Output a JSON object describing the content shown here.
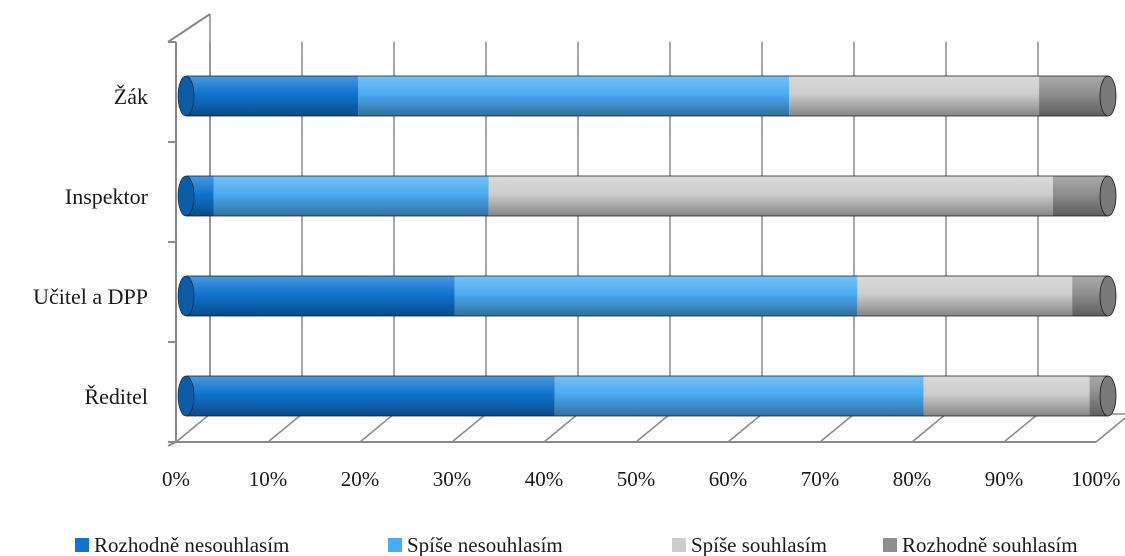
{
  "chart_data": {
    "type": "bar",
    "orientation": "horizontal",
    "stacked": "percent",
    "three_d": true,
    "categories": [
      "Žák",
      "Inspektor",
      "Učitel a DPP",
      "Ředitel"
    ],
    "series": [
      {
        "name": "Rozhodně nesouhlasím",
        "color": "#0f74d0",
        "values": [
          20,
          4,
          30,
          40
        ]
      },
      {
        "name": "Spíše nesouhlasím",
        "color": "#4aabf2",
        "values": [
          50,
          40,
          45,
          40
        ]
      },
      {
        "name": "Spíše souhlasím",
        "color": "#cdcdcd",
        "values": [
          29,
          82,
          24,
          18
        ]
      },
      {
        "name": "Rozhodně souhlasím",
        "color": "#8e8e8e",
        "values": [
          8,
          8,
          4,
          2
        ]
      }
    ],
    "xlim": [
      0,
      100
    ],
    "x_ticks": [
      "0%",
      "10%",
      "20%",
      "30%",
      "40%",
      "50%",
      "60%",
      "70%",
      "80%",
      "90%",
      "100%"
    ],
    "grid": true,
    "legend_position": "bottom"
  }
}
